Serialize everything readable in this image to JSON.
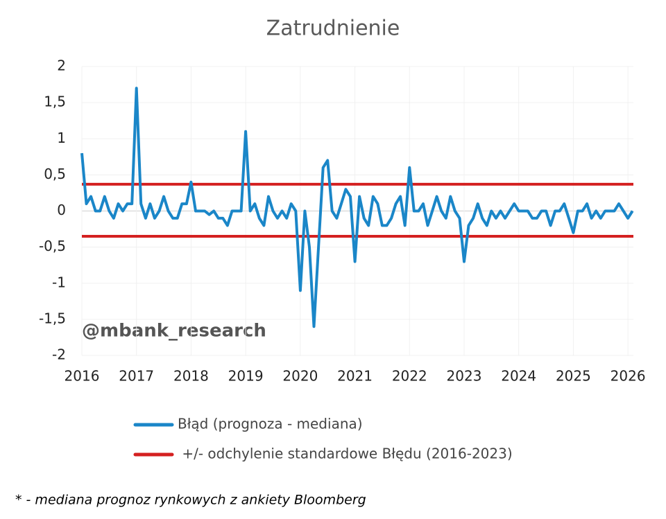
{
  "chart_data": {
    "type": "line",
    "title": "Zatrudnienie",
    "x": [
      2016,
      2016.083,
      2016.167,
      2016.25,
      2016.333,
      2016.417,
      2016.5,
      2016.583,
      2016.667,
      2016.75,
      2016.833,
      2016.917,
      2017,
      2017.083,
      2017.167,
      2017.25,
      2017.333,
      2017.417,
      2017.5,
      2017.583,
      2017.667,
      2017.75,
      2017.833,
      2017.917,
      2018,
      2018.083,
      2018.167,
      2018.25,
      2018.333,
      2018.417,
      2018.5,
      2018.583,
      2018.667,
      2018.75,
      2018.833,
      2018.917,
      2019,
      2019.083,
      2019.167,
      2019.25,
      2019.333,
      2019.417,
      2019.5,
      2019.583,
      2019.667,
      2019.75,
      2019.833,
      2019.917,
      2020,
      2020.083,
      2020.167,
      2020.25,
      2020.333,
      2020.417,
      2020.5,
      2020.583,
      2020.667,
      2020.75,
      2020.833,
      2020.917,
      2021,
      2021.083,
      2021.167,
      2021.25,
      2021.333,
      2021.417,
      2021.5,
      2021.583,
      2021.667,
      2021.75,
      2021.833,
      2021.917,
      2022,
      2022.083,
      2022.167,
      2022.25,
      2022.333,
      2022.417,
      2022.5,
      2022.583,
      2022.667,
      2022.75,
      2022.833,
      2022.917,
      2023,
      2023.083,
      2023.167,
      2023.25,
      2023.333,
      2023.417,
      2023.5,
      2023.583,
      2023.667,
      2023.75,
      2023.833,
      2023.917,
      2024,
      2024.083,
      2024.167,
      2024.25,
      2024.333,
      2024.417,
      2024.5,
      2024.583,
      2024.667,
      2024.75,
      2024.833,
      2024.917,
      2025,
      2025.083,
      2025.167,
      2025.25,
      2025.333,
      2025.417,
      2025.5,
      2025.583,
      2025.667,
      2025.75,
      2025.833,
      2025.917,
      2026,
      2026.083
    ],
    "series": [
      {
        "name": "Błąd (prognoza - mediana)",
        "color": "#1a86c8",
        "values": [
          0.8,
          0.1,
          0.2,
          0,
          0,
          0.2,
          0,
          -0.1,
          0.1,
          0,
          0.1,
          0.1,
          1.7,
          0.1,
          -0.1,
          0.1,
          -0.1,
          0,
          0.2,
          0,
          -0.1,
          -0.1,
          0.1,
          0.1,
          0.4,
          0,
          0,
          0,
          -0.05,
          0,
          -0.1,
          -0.1,
          -0.2,
          0,
          0,
          0,
          1.1,
          0,
          0.1,
          -0.1,
          -0.2,
          0.2,
          0,
          -0.1,
          0,
          -0.1,
          0.1,
          0,
          -1.1,
          0,
          -0.5,
          -1.6,
          -0.5,
          0.6,
          0.7,
          0,
          -0.1,
          0.1,
          0.3,
          0.2,
          -0.7,
          0.2,
          -0.1,
          -0.2,
          0.2,
          0.1,
          -0.2,
          -0.2,
          -0.1,
          0.1,
          0.2,
          -0.2,
          0.6,
          0,
          0,
          0.1,
          -0.2,
          0,
          0.2,
          0,
          -0.1,
          0.2,
          0,
          -0.1,
          -0.7,
          -0.2,
          -0.1,
          0.1,
          -0.1,
          -0.2,
          0,
          -0.1,
          0,
          -0.1,
          0,
          0.1,
          0,
          0,
          0,
          -0.1,
          -0.1,
          0,
          0,
          -0.2,
          0,
          0,
          0.1,
          -0.1,
          -0.3,
          0,
          0,
          0.1,
          -0.1,
          0,
          -0.1,
          0,
          0,
          0,
          0.1,
          0,
          -0.1,
          0
        ]
      }
    ],
    "reference_lines": {
      "name": " +/- odchylenie standardowe Błędu (2016-2023)",
      "color": "#d42020",
      "values": [
        0.37,
        -0.35
      ]
    },
    "xlim": [
      2016,
      2026.1
    ],
    "xticks": [
      2016,
      2017,
      2018,
      2019,
      2020,
      2021,
      2022,
      2023,
      2024,
      2025,
      2026
    ],
    "ylim": [
      -2,
      2
    ],
    "yticks": [
      2,
      {
        "value": 1.5,
        "label": "1,5"
      },
      1,
      {
        "value": 0.5,
        "label": "0,5"
      },
      0,
      {
        "value": -0.5,
        "label": "-0,5"
      },
      -1,
      {
        "value": -1.5,
        "label": "-1,5"
      },
      -2
    ],
    "grid": true,
    "watermark": "@mbank_research",
    "footnote": "* - mediana prognoz rynkowych z ankiety Bloomberg"
  }
}
